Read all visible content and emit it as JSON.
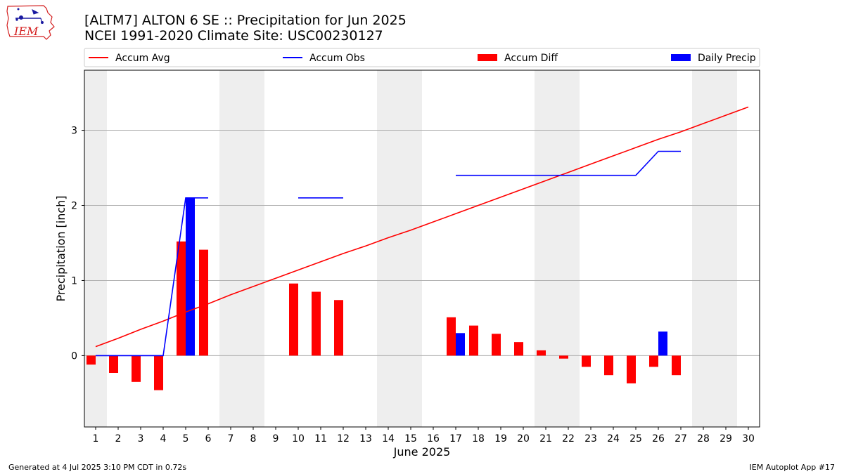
{
  "header": {
    "title_line1": "[ALTM7] ALTON 6 SE :: Precipitation for Jun 2025",
    "title_line2": "NCEI 1991-2020 Climate Site: USC00230127",
    "logo_text": "IEM"
  },
  "footer": {
    "left": "Generated at 4 Jul 2025 3:10 PM CDT in 0.72s",
    "right": "IEM Autoplot App #17"
  },
  "colors": {
    "accum_avg": "#ff0000",
    "accum_obs": "#0000ff",
    "accum_diff": "#ff0000",
    "daily_precip": "#0000ff",
    "weekend_shade": "#eeeeee",
    "grid": "#b0b0b0"
  },
  "chart_data": {
    "type": "bar",
    "title": "[ALTM7] ALTON 6 SE :: Precipitation for Jun 2025",
    "subtitle": "NCEI 1991-2020 Climate Site: USC00230127",
    "xlabel": "June 2025",
    "ylabel": "Precipitation [inch]",
    "x": [
      1,
      2,
      3,
      4,
      5,
      6,
      7,
      8,
      9,
      10,
      11,
      12,
      13,
      14,
      15,
      16,
      17,
      18,
      19,
      20,
      21,
      22,
      23,
      24,
      25,
      26,
      27,
      28,
      29,
      30
    ],
    "xlim": [
      0.5,
      30.5
    ],
    "ylim": [
      -0.95,
      3.8
    ],
    "yticks": [
      0,
      1,
      2,
      3
    ],
    "grid": "horizontal",
    "legend_position": "top",
    "weekend_days": [
      1,
      7,
      8,
      14,
      15,
      21,
      22,
      28,
      29
    ],
    "legend": [
      {
        "label": "Accum Avg",
        "kind": "line",
        "color": "#ff0000"
      },
      {
        "label": "Accum Obs",
        "kind": "line",
        "color": "#0000ff"
      },
      {
        "label": "Accum Diff",
        "kind": "bar",
        "color": "#ff0000"
      },
      {
        "label": "Daily Precip",
        "kind": "bar",
        "color": "#0000ff"
      }
    ],
    "series": [
      {
        "name": "Accum Avg",
        "kind": "line",
        "color": "#ff0000",
        "values": [
          0.12,
          0.23,
          0.35,
          0.46,
          0.58,
          0.69,
          0.81,
          0.92,
          1.03,
          1.14,
          1.25,
          1.36,
          1.46,
          1.57,
          1.67,
          1.78,
          1.89,
          2.0,
          2.11,
          2.22,
          2.33,
          2.44,
          2.55,
          2.66,
          2.77,
          2.88,
          2.98,
          3.09,
          3.2,
          3.31
        ]
      },
      {
        "name": "Accum Obs",
        "kind": "line",
        "color": "#0000ff",
        "values": [
          0.0,
          0.0,
          0.0,
          0.0,
          2.1,
          2.1,
          null,
          null,
          null,
          2.1,
          2.1,
          2.1,
          null,
          null,
          null,
          null,
          2.4,
          2.4,
          2.4,
          2.4,
          2.4,
          2.4,
          2.4,
          2.4,
          2.4,
          2.72,
          2.72,
          null,
          null,
          null
        ]
      },
      {
        "name": "Accum Diff",
        "kind": "bar",
        "color": "#ff0000",
        "values": [
          -0.12,
          -0.23,
          -0.35,
          -0.46,
          1.52,
          1.41,
          null,
          null,
          null,
          0.96,
          0.85,
          0.74,
          null,
          null,
          null,
          null,
          0.51,
          0.4,
          0.29,
          0.18,
          0.07,
          -0.04,
          -0.15,
          -0.26,
          -0.37,
          -0.15,
          -0.26,
          null,
          null,
          null
        ]
      },
      {
        "name": "Daily Precip",
        "kind": "bar",
        "color": "#0000ff",
        "values": [
          0,
          0,
          0,
          0,
          2.1,
          0,
          null,
          null,
          null,
          0,
          0,
          0,
          null,
          null,
          null,
          null,
          0.3,
          0,
          0,
          0,
          0,
          0,
          0,
          0,
          0,
          0.32,
          0,
          null,
          null,
          null
        ]
      }
    ]
  }
}
